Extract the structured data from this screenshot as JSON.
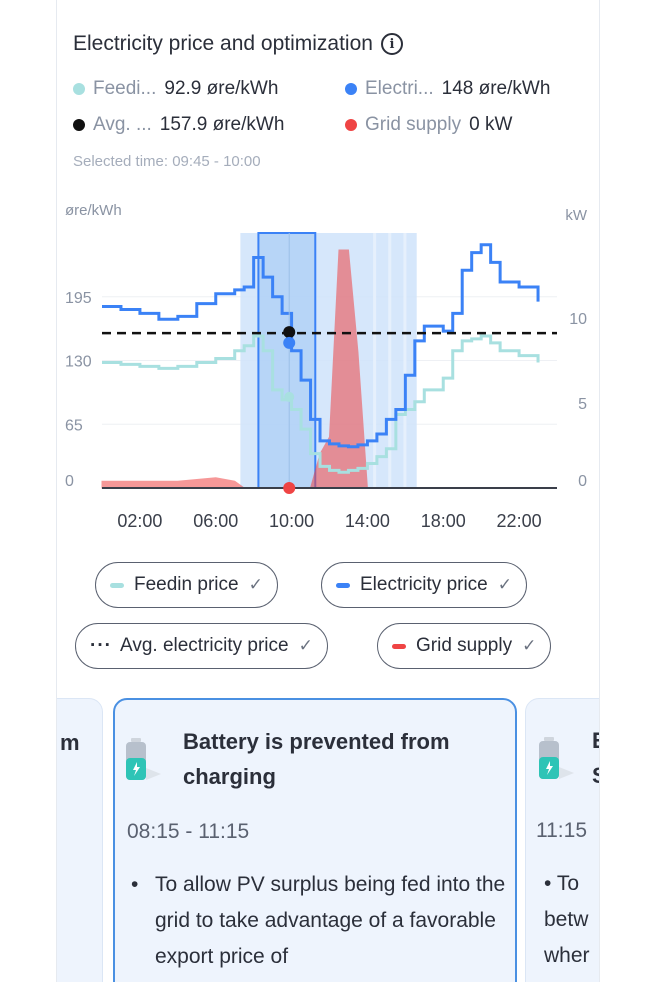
{
  "header": {
    "title": "Electricity price and optimization",
    "info_icon": "info-icon"
  },
  "legend_values": [
    {
      "name": "Feedi...",
      "value": "92.9 øre/kWh",
      "color": "#a8e0e0"
    },
    {
      "name": "Electri...",
      "value": "148 øre/kWh",
      "color": "#3b82f6"
    },
    {
      "name": "Avg. ...",
      "value": "157.9 øre/kWh",
      "color": "#111111"
    },
    {
      "name": "Grid supply",
      "value": "0 kW",
      "color": "#ef4444"
    }
  ],
  "selected_time": "Selected time: 09:45 - 10:00",
  "chart_data": {
    "type": "line",
    "ylabel_left": "øre/kWh",
    "ylabel_right": "kW",
    "y_left_ticks": [
      "195",
      "130",
      "65",
      "0"
    ],
    "y_right_ticks": [
      "10",
      "5",
      "0"
    ],
    "x_ticks": [
      "02:00",
      "06:00",
      "10:00",
      "14:00",
      "18:00",
      "22:00"
    ],
    "ylim_left": [
      0,
      260
    ],
    "ylim_right": [
      0,
      15
    ],
    "x_hours": [
      0,
      1,
      2,
      3,
      4,
      5,
      6,
      7,
      7.5,
      8,
      8.5,
      9,
      9.5,
      10,
      10.5,
      11,
      11.5,
      12,
      12.5,
      13,
      13.5,
      14,
      14.5,
      15,
      15.5,
      16,
      16.5,
      17,
      18,
      18.5,
      19,
      19.5,
      20,
      20.5,
      21,
      22,
      23
    ],
    "series": [
      {
        "name": "Electricity price",
        "color": "#3b82f6",
        "values": [
          185,
          182,
          178,
          172,
          175,
          188,
          198,
          202,
          205,
          235,
          215,
          195,
          178,
          140,
          110,
          70,
          48,
          45,
          43,
          42,
          44,
          48,
          55,
          70,
          80,
          115,
          150,
          165,
          160,
          178,
          222,
          240,
          248,
          230,
          210,
          205,
          190
        ]
      },
      {
        "name": "Feedin price",
        "color": "#a8e0e0",
        "values": [
          128,
          126,
          124,
          122,
          124,
          128,
          132,
          140,
          145,
          155,
          140,
          100,
          90,
          80,
          60,
          35,
          22,
          18,
          16,
          18,
          20,
          25,
          32,
          40,
          75,
          80,
          88,
          100,
          112,
          140,
          150,
          152,
          155,
          148,
          140,
          135,
          128
        ]
      },
      {
        "name": "Avg. electricity price",
        "color": "#111111",
        "values": [
          157.9
        ]
      },
      {
        "name": "Grid supply",
        "color": "#ef4444",
        "values": [
          0.4,
          0.4,
          0.4,
          0.4,
          0.4,
          0.5,
          0.6,
          0.4,
          0,
          0,
          0,
          0,
          0,
          0,
          0,
          0,
          2,
          3,
          14,
          14,
          8,
          0,
          0,
          0,
          0,
          0,
          0,
          0,
          0,
          0,
          0,
          0,
          0,
          0,
          0,
          0,
          0
        ]
      }
    ],
    "selected_time_hours": 9.875,
    "highlight_ranges": [
      [
        7.3,
        16.6
      ]
    ],
    "selected_window": [
      8.25,
      11.25
    ]
  },
  "chips": [
    {
      "label": "Feedin price",
      "color": "#a8e0e0",
      "icon": "check-icon"
    },
    {
      "label": "Electricity price",
      "color": "#3b82f6",
      "icon": "check-icon"
    },
    {
      "label": "Avg. electricity price",
      "icon": "check-icon",
      "prefix": "···"
    },
    {
      "label": "Grid supply",
      "color": "#ef4444",
      "icon": "check-icon"
    }
  ],
  "cards": {
    "left_partial": {
      "title_fragment": "m"
    },
    "main": {
      "title": "Battery is prevented from charging",
      "time": "08:15 - 11:15",
      "body": "To allow PV surplus being fed into the grid to take advantage of a favorable export price of"
    },
    "right_partial": {
      "title_fragment": "E S",
      "time": "11:15",
      "body_lines": [
        "To",
        "betw",
        "wher"
      ]
    }
  }
}
